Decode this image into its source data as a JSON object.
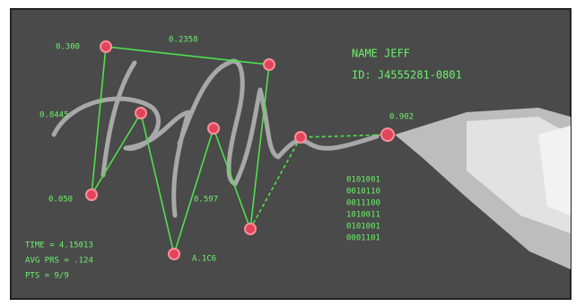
{
  "point_labels": [
    "0.300",
    "0.2358",
    "0.8445",
    "0.050",
    "0.597",
    "A.1C6",
    "0.902"
  ],
  "identity": {
    "name": "NAME JEFF",
    "id": "ID: J4555281-0801"
  },
  "codes": [
    "0101001",
    "0010110",
    "0011100",
    "1010011",
    "0101001",
    "0001101"
  ],
  "stats": [
    "TIME = 4.15013",
    "AVG PRS = .124",
    "PTS = 9/9"
  ]
}
